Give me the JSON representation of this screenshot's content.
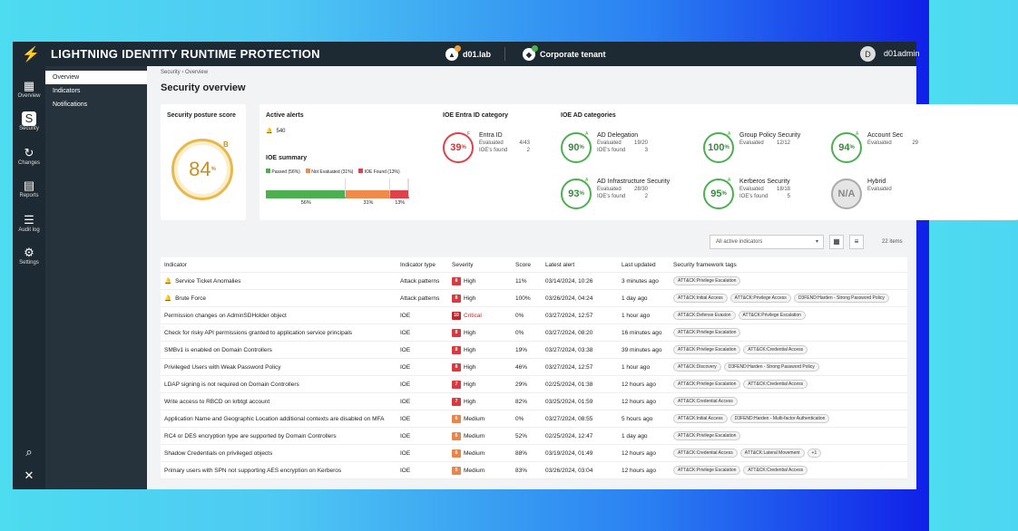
{
  "app": {
    "title": "LIGHTNING IDENTITY RUNTIME PROTECTION",
    "env1": "d01.lab",
    "env2": "Corporate tenant",
    "user_initial": "D",
    "user": "d01admin"
  },
  "rail": [
    {
      "label": "Overview",
      "icon": "grid-icon"
    },
    {
      "label": "Security",
      "icon": "shield-icon"
    },
    {
      "label": "Changes",
      "icon": "refresh-icon"
    },
    {
      "label": "Reports",
      "icon": "report-icon"
    },
    {
      "label": "Audit log",
      "icon": "audit-icon"
    },
    {
      "label": "Settings",
      "icon": "gear-icon"
    }
  ],
  "subnav": [
    "Overview",
    "Indicators",
    "Notifications"
  ],
  "breadcrumb": {
    "root": "Security",
    "current": "Overview"
  },
  "page_title": "Security overview",
  "posture": {
    "title": "Security posture score",
    "value": "84",
    "unit": "%",
    "grade": "B"
  },
  "alerts": {
    "title": "Active alerts",
    "count": "540"
  },
  "ioe_summary": {
    "title": "IOE summary",
    "legend": [
      "Passed (56%)",
      "Not Evaluated (31%)",
      "IOE Found (13%)"
    ],
    "bars": [
      "56%",
      "31%",
      "13%"
    ],
    "fractions": [
      0.56,
      0.31,
      0.13
    ],
    "colors": [
      "#4caf50",
      "#f08a4b",
      "#e0404a"
    ]
  },
  "entra": {
    "title": "IOE Entra ID category",
    "name": "Entra ID",
    "value": "39",
    "grade": "F",
    "evaluated_label": "Evaluated",
    "evaluated": "4/43",
    "found_label": "IOE's found",
    "found": "2"
  },
  "ad": {
    "title": "IOE AD categories",
    "items": [
      {
        "name": "AD Delegation",
        "value": "90",
        "grade": "A",
        "evaluated": "19/20",
        "found": "3"
      },
      {
        "name": "Group Policy Security",
        "value": "100",
        "grade": "A",
        "evaluated": "12/12",
        "found": ""
      },
      {
        "name": "Account Sec",
        "value": "94",
        "grade": "A",
        "evaluated": "29",
        "found": ""
      },
      {
        "name": "AD Infrastructure Security",
        "value": "93",
        "grade": "A",
        "evaluated": "28/30",
        "found": "2"
      },
      {
        "name": "Kerberos Security",
        "value": "95",
        "grade": "A",
        "evaluated": "18/18",
        "found": "5"
      },
      {
        "name": "Hybrid",
        "value": "N/A",
        "grade": "",
        "evaluated": "",
        "found": ""
      }
    ],
    "evaluated_label": "Evaluated",
    "found_label": "IOE's found"
  },
  "filter": {
    "placeholder": "All active indicators",
    "count": "22 items"
  },
  "columns": [
    "Indicator",
    "Indicator type",
    "Severity",
    "Score",
    "Latest alert",
    "Last updated",
    "Security framework tags"
  ],
  "rows": [
    {
      "alert": true,
      "name": "Service Ticket Anomalies",
      "type": "Attack patterns",
      "sev": "8",
      "sevlabel": "High",
      "score": "11%",
      "latest": "03/14/2024, 10:26",
      "updated": "3 minutes ago",
      "tags": [
        "ATT&CK:Privilege Escalation"
      ]
    },
    {
      "alert": true,
      "name": "Brute Force",
      "type": "Attack patterns",
      "sev": "8",
      "sevlabel": "High",
      "score": "100%",
      "latest": "03/26/2024, 04:24",
      "updated": "1 day ago",
      "tags": [
        "ATT&CK:Initial Access",
        "ATT&CK:Privilege Access",
        "D3FEND:Harden - Strong Password Policy"
      ]
    },
    {
      "alert": false,
      "name": "Permission changes on AdminSDHolder object",
      "type": "IOE",
      "sev": "10",
      "sevlabel": "Critical",
      "score": "0%",
      "latest": "03/27/2024, 12:57",
      "updated": "1 hour ago",
      "tags": [
        "ATT&CK:Defense Evasion",
        "ATT&CK:Privilege Escalation"
      ]
    },
    {
      "alert": false,
      "name": "Check for risky API permissions granted to application service principals",
      "type": "IOE",
      "sev": "8",
      "sevlabel": "High",
      "score": "0%",
      "latest": "03/27/2024, 08:20",
      "updated": "16 minutes ago",
      "tags": [
        "ATT&CK:Privilege Escalation"
      ]
    },
    {
      "alert": false,
      "name": "SMBv1 is enabled on Domain Controllers",
      "type": "IOE",
      "sev": "8",
      "sevlabel": "High",
      "score": "19%",
      "latest": "03/27/2024, 03:38",
      "updated": "39 minutes ago",
      "tags": [
        "ATT&CK:Privilege Escalation",
        "ATT&CK:Credential Access"
      ]
    },
    {
      "alert": false,
      "name": "Privileged Users with Weak Password Policy",
      "type": "IOE",
      "sev": "8",
      "sevlabel": "High",
      "score": "46%",
      "latest": "03/27/2024, 12:57",
      "updated": "1 hour ago",
      "tags": [
        "ATT&CK:Discovery",
        "D3FEND:Harden - Strong Password Policy"
      ]
    },
    {
      "alert": false,
      "name": "LDAP signing is not required on Domain Controllers",
      "type": "IOE",
      "sev": "7",
      "sevlabel": "High",
      "score": "29%",
      "latest": "02/25/2024, 01:38",
      "updated": "12 hours ago",
      "tags": [
        "ATT&CK:Privilege Escalation",
        "ATT&CK:Credential Access"
      ]
    },
    {
      "alert": false,
      "name": "Write access to RBCD on krbtgt account",
      "type": "IOE",
      "sev": "7",
      "sevlabel": "High",
      "score": "82%",
      "latest": "03/25/2024, 01:59",
      "updated": "12 hours ago",
      "tags": [
        "ATT&CK:Credential Access"
      ]
    },
    {
      "alert": false,
      "name": "Application Name and Geographic Location additional contexts are disabled on MFA",
      "type": "IOE",
      "sev": "6",
      "sevlabel": "Medium",
      "score": "0%",
      "latest": "03/27/2024, 08:55",
      "updated": "5 hours ago",
      "tags": [
        "ATT&CK:Initial Access",
        "D3FEND:Harden - Multi-factor Authentication"
      ]
    },
    {
      "alert": false,
      "name": "RC4 or DES encryption type are supported by Domain Controllers",
      "type": "IOE",
      "sev": "6",
      "sevlabel": "Medium",
      "score": "52%",
      "latest": "02/25/2024, 12:47",
      "updated": "1 day ago",
      "tags": [
        "ATT&CK:Privilege Escalation"
      ]
    },
    {
      "alert": false,
      "name": "Shadow Credentials on privileged objects",
      "type": "IOE",
      "sev": "6",
      "sevlabel": "Medium",
      "score": "88%",
      "latest": "03/19/2024, 01:49",
      "updated": "12 hours ago",
      "tags": [
        "ATT&CK:Credential Access",
        "ATT&CK:Lateral Movement",
        "+1"
      ]
    },
    {
      "alert": false,
      "name": "Primary users with SPN not supporting AES encryption on Kerberos",
      "type": "IOE",
      "sev": "5",
      "sevlabel": "Medium",
      "score": "83%",
      "latest": "03/26/2024, 03:04",
      "updated": "12 hours ago",
      "tags": [
        "ATT&CK:Privilege Escalation",
        "ATT&CK:Credential Access"
      ]
    }
  ],
  "colors": {
    "critical": "#c0282c",
    "high": "#d83a3f",
    "medium": "#e8854a",
    "green": "#4caf50",
    "gold": "#e0a030",
    "red": "#e0404a"
  }
}
